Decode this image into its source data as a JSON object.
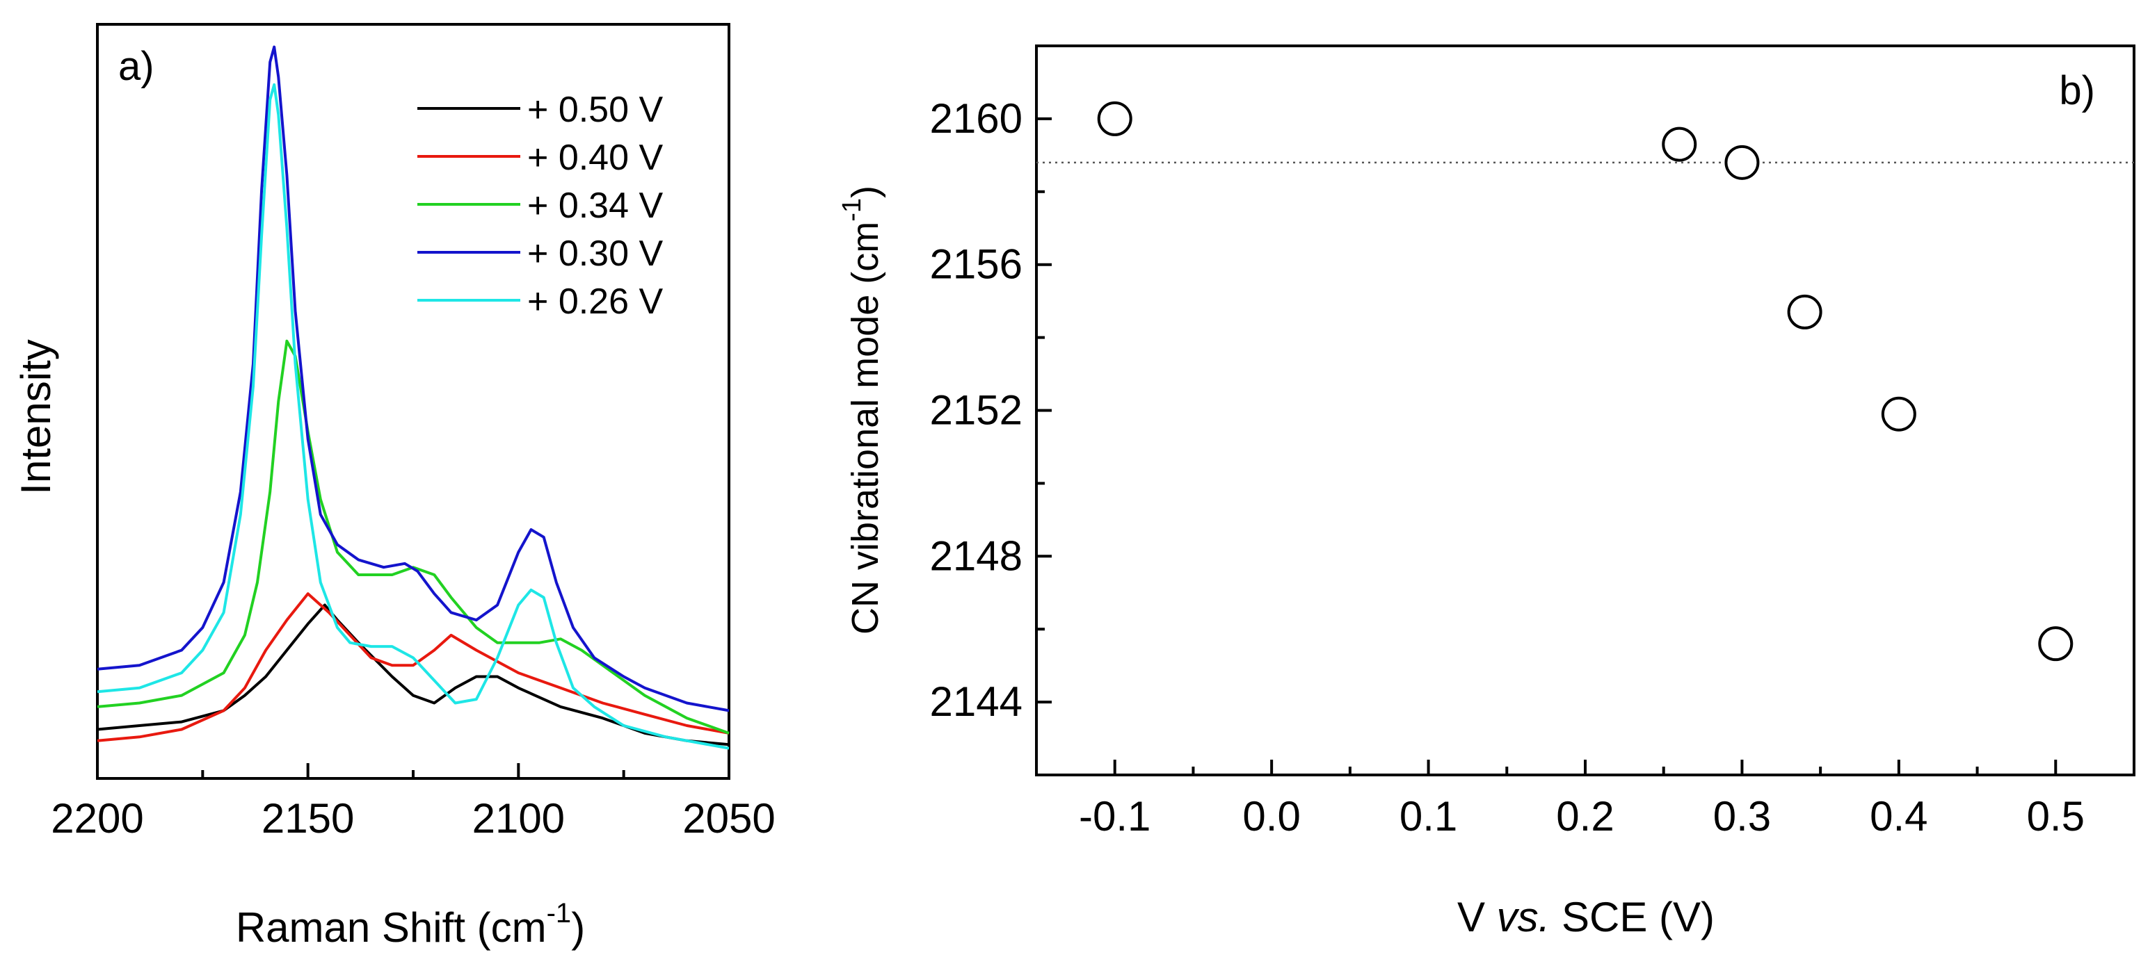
{
  "chart_data": [
    {
      "panel_label": "a)",
      "type": "line",
      "xlabel": "Raman Shift (cm",
      "xlabel_sup": "-1",
      "xlabel_close": ")",
      "ylabel": "Intensity",
      "xlim": [
        2200,
        2050
      ],
      "ylim": [
        0,
        100
      ],
      "xticks": [
        2200,
        2150,
        2100,
        2050
      ],
      "xtick_labels": [
        "2200",
        "2150",
        "2100",
        "2050"
      ],
      "xminor_ticks": [
        2175,
        2125,
        2075
      ],
      "legend_location": "top-right",
      "series": [
        {
          "name": "+ 0.50 V",
          "color": "#000000",
          "points": [
            [
              2200,
              6.5
            ],
            [
              2190,
              7
            ],
            [
              2180,
              7.5
            ],
            [
              2170,
              9
            ],
            [
              2165,
              11
            ],
            [
              2160,
              13.5
            ],
            [
              2155,
              17
            ],
            [
              2150,
              20.5
            ],
            [
              2146,
              23
            ],
            [
              2143,
              21
            ],
            [
              2138,
              18
            ],
            [
              2130,
              13.5
            ],
            [
              2125,
              11
            ],
            [
              2120,
              10
            ],
            [
              2115,
              12
            ],
            [
              2110,
              13.5
            ],
            [
              2105,
              13.5
            ],
            [
              2100,
              12
            ],
            [
              2090,
              9.5
            ],
            [
              2080,
              8
            ],
            [
              2070,
              6
            ],
            [
              2060,
              5
            ],
            [
              2050,
              4.5
            ]
          ]
        },
        {
          "name": "+ 0.40 V",
          "color": "#e8190f",
          "points": [
            [
              2200,
              5
            ],
            [
              2190,
              5.5
            ],
            [
              2180,
              6.5
            ],
            [
              2170,
              9
            ],
            [
              2165,
              12
            ],
            [
              2160,
              17
            ],
            [
              2155,
              21
            ],
            [
              2150,
              24.5
            ],
            [
              2145,
              22
            ],
            [
              2140,
              19
            ],
            [
              2135,
              16
            ],
            [
              2130,
              15
            ],
            [
              2125,
              15
            ],
            [
              2120,
              17
            ],
            [
              2116,
              19
            ],
            [
              2110,
              17
            ],
            [
              2100,
              14
            ],
            [
              2090,
              12
            ],
            [
              2080,
              10
            ],
            [
              2070,
              8.5
            ],
            [
              2060,
              7
            ],
            [
              2050,
              6
            ]
          ]
        },
        {
          "name": "+ 0.34 V",
          "color": "#22d122",
          "points": [
            [
              2200,
              9.5
            ],
            [
              2190,
              10
            ],
            [
              2180,
              11
            ],
            [
              2170,
              14
            ],
            [
              2165,
              19
            ],
            [
              2162,
              26
            ],
            [
              2159,
              38
            ],
            [
              2157,
              50
            ],
            [
              2155,
              58
            ],
            [
              2153,
              56
            ],
            [
              2150,
              46
            ],
            [
              2147,
              37
            ],
            [
              2143,
              30
            ],
            [
              2138,
              27
            ],
            [
              2130,
              27
            ],
            [
              2125,
              28
            ],
            [
              2120,
              27
            ],
            [
              2116,
              24
            ],
            [
              2110,
              20
            ],
            [
              2105,
              18
            ],
            [
              2100,
              18
            ],
            [
              2095,
              18
            ],
            [
              2090,
              18.5
            ],
            [
              2085,
              17
            ],
            [
              2080,
              15
            ],
            [
              2070,
              11
            ],
            [
              2060,
              8
            ],
            [
              2050,
              6
            ]
          ]
        },
        {
          "name": "+ 0.30 V",
          "color": "#1414cc",
          "points": [
            [
              2200,
              14.5
            ],
            [
              2190,
              15
            ],
            [
              2180,
              17
            ],
            [
              2175,
              20
            ],
            [
              2170,
              26
            ],
            [
              2166,
              38
            ],
            [
              2163,
              55
            ],
            [
              2161,
              78
            ],
            [
              2159,
              95
            ],
            [
              2158,
              97
            ],
            [
              2157,
              93
            ],
            [
              2155,
              80
            ],
            [
              2153,
              62
            ],
            [
              2150,
              45
            ],
            [
              2147,
              35
            ],
            [
              2143,
              31
            ],
            [
              2138,
              29
            ],
            [
              2132,
              28
            ],
            [
              2127,
              28.5
            ],
            [
              2124,
              27.5
            ],
            [
              2120,
              24.5
            ],
            [
              2116,
              22
            ],
            [
              2110,
              21
            ],
            [
              2105,
              23
            ],
            [
              2100,
              30
            ],
            [
              2097,
              33
            ],
            [
              2094,
              32
            ],
            [
              2091,
              26
            ],
            [
              2087,
              20
            ],
            [
              2082,
              16
            ],
            [
              2075,
              13.5
            ],
            [
              2070,
              12
            ],
            [
              2060,
              10
            ],
            [
              2050,
              9
            ]
          ]
        },
        {
          "name": "+ 0.26 V",
          "color": "#1ee6e6",
          "points": [
            [
              2200,
              11.5
            ],
            [
              2190,
              12
            ],
            [
              2180,
              14
            ],
            [
              2175,
              17
            ],
            [
              2170,
              22
            ],
            [
              2166,
              35
            ],
            [
              2163,
              52
            ],
            [
              2161,
              72
            ],
            [
              2159,
              90
            ],
            [
              2158,
              92
            ],
            [
              2157,
              88
            ],
            [
              2155,
              73
            ],
            [
              2153,
              55
            ],
            [
              2150,
              37
            ],
            [
              2147,
              26
            ],
            [
              2143,
              20
            ],
            [
              2140,
              18
            ],
            [
              2135,
              17.5
            ],
            [
              2130,
              17.5
            ],
            [
              2125,
              16
            ],
            [
              2120,
              13
            ],
            [
              2115,
              10
            ],
            [
              2110,
              10.5
            ],
            [
              2105,
              16
            ],
            [
              2100,
              23
            ],
            [
              2097,
              25
            ],
            [
              2094,
              24
            ],
            [
              2091,
              18
            ],
            [
              2087,
              12
            ],
            [
              2082,
              9.5
            ],
            [
              2075,
              7
            ],
            [
              2065,
              5.5
            ],
            [
              2050,
              4
            ]
          ]
        }
      ]
    },
    {
      "panel_label": "b)",
      "type": "scatter",
      "xlabel_pre": "V ",
      "xlabel_italic": "vs.",
      "xlabel_post": " SCE (V)",
      "ylabel": "CN vibrational mode (cm",
      "ylabel_sup": "-1",
      "ylabel_close": ")",
      "xlim": [
        -0.15,
        0.55
      ],
      "ylim": [
        2142,
        2162
      ],
      "xticks": [
        -0.1,
        0.0,
        0.1,
        0.2,
        0.3,
        0.4,
        0.5
      ],
      "xtick_labels": [
        "-0.1",
        "0.0",
        "0.1",
        "0.2",
        "0.3",
        "0.4",
        "0.5"
      ],
      "xminor_ticks": [
        -0.05,
        0.05,
        0.15,
        0.25,
        0.35,
        0.45
      ],
      "yticks": [
        2144,
        2148,
        2152,
        2156,
        2160
      ],
      "ytick_labels": [
        "2144",
        "2148",
        "2152",
        "2156",
        "2160"
      ],
      "yminor_ticks": [
        2146,
        2150,
        2154,
        2158
      ],
      "reference_line_y": 2158.8,
      "x": [
        -0.1,
        0.26,
        0.3,
        0.34,
        0.4,
        0.5
      ],
      "y": [
        2160.0,
        2159.3,
        2158.8,
        2154.7,
        2151.9,
        2145.6
      ]
    }
  ]
}
